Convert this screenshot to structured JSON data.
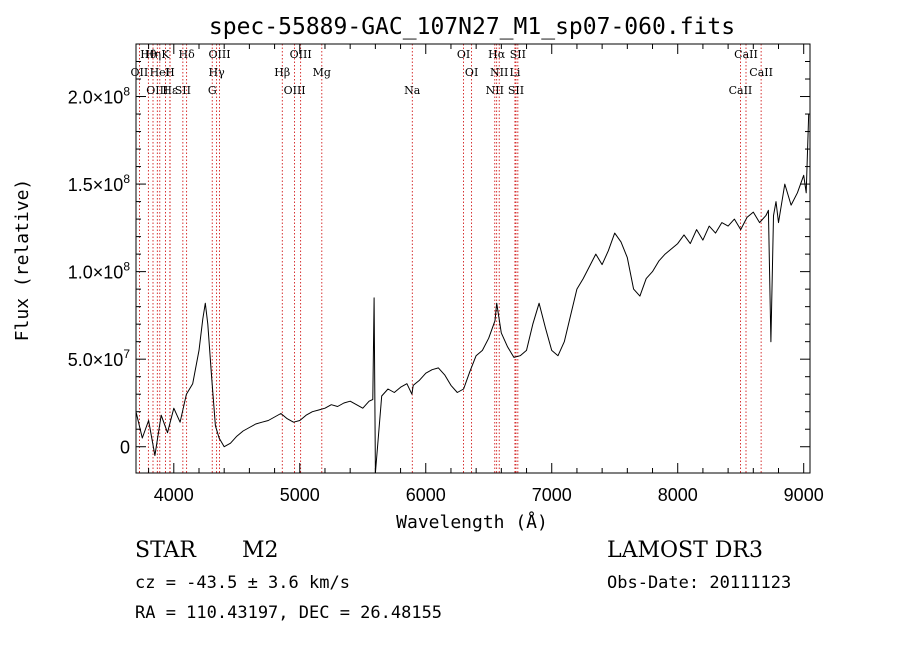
{
  "chart_data": {
    "type": "line",
    "title": "spec-55889-GAC_107N27_M1_sp07-060.fits",
    "xlabel": "Wavelength (Å)",
    "ylabel": "Flux (relative)",
    "xlim": [
      3700,
      9050
    ],
    "ylim": [
      -15000000,
      230000000
    ],
    "xticks": [
      4000,
      5000,
      6000,
      7000,
      8000,
      9000
    ],
    "xtick_labels": [
      "4000",
      "5000",
      "6000",
      "7000",
      "8000",
      "9000"
    ],
    "yticks": [
      0,
      50000000,
      100000000,
      150000000,
      200000000
    ],
    "ytick_labels": [
      {
        "mant": "0",
        "exp": ""
      },
      {
        "mant": "5.0×10",
        "exp": "7"
      },
      {
        "mant": "1.0×10",
        "exp": "8"
      },
      {
        "mant": "1.5×10",
        "exp": "8"
      },
      {
        "mant": "2.0×10",
        "exp": "8"
      }
    ],
    "grid": false,
    "series": [
      {
        "name": "flux",
        "x": [
          3700,
          3750,
          3800,
          3850,
          3900,
          3950,
          4000,
          4050,
          4100,
          4150,
          4200,
          4230,
          4250,
          4270,
          4300,
          4330,
          4360,
          4400,
          4450,
          4500,
          4550,
          4600,
          4650,
          4700,
          4750,
          4800,
          4850,
          4900,
          4950,
          5000,
          5050,
          5100,
          5150,
          5200,
          5250,
          5300,
          5350,
          5400,
          5450,
          5500,
          5550,
          5580,
          5590,
          5600,
          5650,
          5700,
          5750,
          5800,
          5850,
          5890,
          5900,
          5950,
          6000,
          6050,
          6100,
          6150,
          6200,
          6250,
          6300,
          6350,
          6400,
          6450,
          6500,
          6550,
          6563,
          6600,
          6650,
          6700,
          6750,
          6800,
          6850,
          6900,
          6950,
          7000,
          7050,
          7100,
          7150,
          7200,
          7250,
          7300,
          7350,
          7400,
          7450,
          7500,
          7550,
          7600,
          7650,
          7700,
          7750,
          7800,
          7850,
          7900,
          7950,
          8000,
          8050,
          8100,
          8150,
          8200,
          8250,
          8300,
          8350,
          8400,
          8450,
          8500,
          8550,
          8600,
          8650,
          8700,
          8720,
          8740,
          8760,
          8780,
          8800,
          8850,
          8900,
          8950,
          9000,
          9020,
          9040
        ],
        "y": [
          20000000,
          5000000,
          15000000,
          -5000000,
          18000000,
          8000000,
          22000000,
          14000000,
          30000000,
          36000000,
          55000000,
          73000000,
          82000000,
          70000000,
          40000000,
          12000000,
          5000000,
          0,
          2000000,
          6000000,
          9000000,
          11000000,
          13000000,
          14000000,
          15000000,
          17000000,
          19000000,
          16000000,
          14000000,
          15000000,
          18000000,
          20000000,
          21000000,
          22000000,
          24000000,
          23000000,
          25000000,
          26000000,
          24000000,
          22000000,
          26000000,
          27000000,
          85000000,
          -15000000,
          29000000,
          33000000,
          31000000,
          34000000,
          36000000,
          30000000,
          35000000,
          38000000,
          42000000,
          44000000,
          45000000,
          41000000,
          35000000,
          31000000,
          33000000,
          43000000,
          52000000,
          55000000,
          62000000,
          72000000,
          82000000,
          65000000,
          57000000,
          51000000,
          52000000,
          55000000,
          70000000,
          82000000,
          68000000,
          55000000,
          52000000,
          60000000,
          75000000,
          90000000,
          96000000,
          103000000,
          110000000,
          104000000,
          112000000,
          122000000,
          117000000,
          108000000,
          90000000,
          86000000,
          96000000,
          100000000,
          106000000,
          110000000,
          113000000,
          116000000,
          121000000,
          116000000,
          124000000,
          118000000,
          126000000,
          122000000,
          128000000,
          126000000,
          130000000,
          124000000,
          131000000,
          134000000,
          128000000,
          132000000,
          135000000,
          60000000,
          132000000,
          140000000,
          128000000,
          150000000,
          138000000,
          145000000,
          155000000,
          145000000,
          190000000
        ],
        "color": "#000000"
      }
    ],
    "lines": [
      {
        "name": "Hθ",
        "x": 3798
      },
      {
        "name": "OII",
        "x": 3727
      },
      {
        "name": "OIII",
        "x": 3869
      },
      {
        "name": "K",
        "x": 3934
      },
      {
        "name": "H",
        "x": 3969
      },
      {
        "name": "Hε",
        "x": 3970
      },
      {
        "name": "Hδ",
        "x": 4102
      },
      {
        "name": "HeI",
        "x": 3889
      },
      {
        "name": "SII",
        "x": 4072
      },
      {
        "name": "Hη",
        "x": 3835
      },
      {
        "name": "Hγ",
        "x": 4340
      },
      {
        "name": "G",
        "x": 4305
      },
      {
        "name": "OIII",
        "x": 4363
      },
      {
        "name": "Hβ",
        "x": 4861
      },
      {
        "name": "OIII",
        "x": 4959
      },
      {
        "name": "OIII",
        "x": 5007
      },
      {
        "name": "Mg",
        "x": 5175
      },
      {
        "name": "Na",
        "x": 5893
      },
      {
        "name": "OI",
        "x": 6300
      },
      {
        "name": "OI",
        "x": 6364
      },
      {
        "name": "NII",
        "x": 6548
      },
      {
        "name": "Hα",
        "x": 6563
      },
      {
        "name": "NII",
        "x": 6583
      },
      {
        "name": "SII",
        "x": 6716
      },
      {
        "name": "SII",
        "x": 6731
      },
      {
        "name": "Li",
        "x": 6708
      },
      {
        "name": "CaII",
        "x": 8498
      },
      {
        "name": "CaII",
        "x": 8542
      },
      {
        "name": "CaII",
        "x": 8662
      }
    ]
  },
  "info": {
    "object_class": "STAR",
    "subclass": "M2",
    "redshift": "cz = -43.5 ± 3.6 km/s",
    "coordinates": "RA = 110.43197, DEC =  26.48155",
    "survey": "LAMOST DR3",
    "obs_date": "Obs-Date: 20111123"
  },
  "colors": {
    "line_marker": "#cc0000",
    "spectrum": "#000000",
    "axes": "#000000"
  }
}
